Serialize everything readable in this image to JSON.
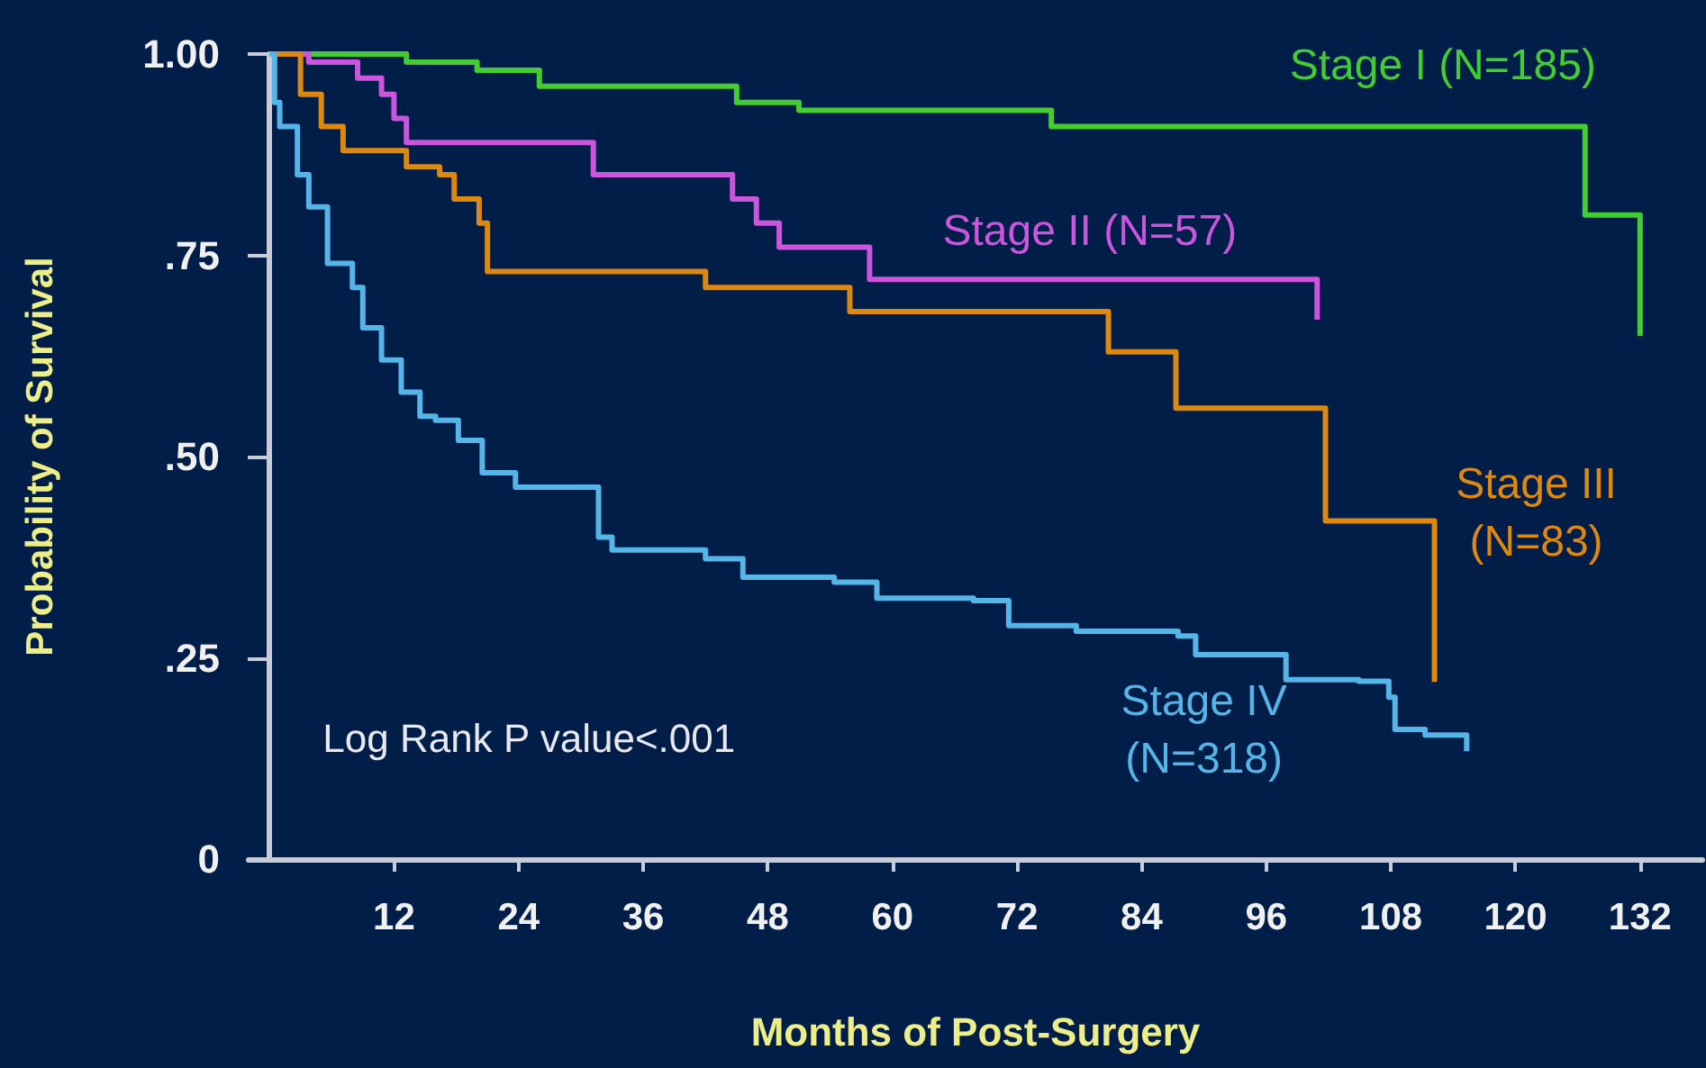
{
  "chart_data": {
    "type": "step",
    "xlabel": "Months of Post-Surgery",
    "ylabel": "Probability of Survival",
    "xlim": [
      -2,
      138
    ],
    "ylim": [
      0,
      1
    ],
    "xticks": [
      12,
      24,
      36,
      48,
      60,
      72,
      84,
      96,
      108,
      120,
      132
    ],
    "yticks": [
      {
        "value": 0,
        "label": "0"
      },
      {
        "value": 0.25,
        "label": ".25"
      },
      {
        "value": 0.5,
        "label": ".50"
      },
      {
        "value": 0.75,
        "label": ".75"
      },
      {
        "value": 1,
        "label": "1.00"
      }
    ],
    "grid": false,
    "legend": false,
    "marker": "none",
    "line_style": "solid",
    "annotations": [
      "Log Rank P value<.001"
    ],
    "series": [
      {
        "name": "Stage I (N=185)",
        "color": "#44cc33",
        "x": [
          0,
          13.2,
          20,
          26,
          45,
          51,
          75.3,
          126.7,
          132
        ],
        "values": [
          1,
          0.99,
          0.98,
          0.96,
          0.94,
          0.93,
          0.91,
          0.8,
          0.65
        ]
      },
      {
        "name": "Stage II (N=57)",
        "color": "#cc55dd",
        "x": [
          0,
          3.8,
          8.5,
          10.8,
          12,
          13.2,
          31.2,
          44.6,
          46.9,
          49.1,
          57.8,
          100.9
        ],
        "values": [
          1,
          0.99,
          0.97,
          0.95,
          0.92,
          0.89,
          0.85,
          0.82,
          0.79,
          0.76,
          0.72,
          0.67
        ]
      },
      {
        "name": "Stage III\n(N=83)",
        "color": "#dd8811",
        "x": [
          0,
          3,
          5,
          7.1,
          13.2,
          16.4,
          17.8,
          20.2,
          21,
          42,
          55.9,
          80.8,
          87.3,
          101.7,
          112.2
        ],
        "values": [
          1,
          0.95,
          0.91,
          0.88,
          0.86,
          0.85,
          0.82,
          0.79,
          0.73,
          0.71,
          0.68,
          0.63,
          0.56,
          0.42,
          0.22
        ]
      },
      {
        "name": "Stage IV\n(N=318)",
        "color": "#55b4e8",
        "x": [
          0,
          0.5,
          1,
          2.7,
          3.8,
          5.6,
          8,
          9,
          10.8,
          12.7,
          14.5,
          16,
          18.2,
          20.5,
          23.7,
          31.7,
          33,
          42,
          45.6,
          54.4,
          58.5,
          67.8,
          71.2,
          77.7,
          87.5,
          89.2,
          97.9,
          104.9,
          107.8,
          108.4,
          111.3,
          115.3,
          115.3
        ],
        "values": [
          1,
          0.94,
          0.91,
          0.85,
          0.81,
          0.74,
          0.71,
          0.66,
          0.62,
          0.58,
          0.55,
          0.545,
          0.52,
          0.48,
          0.462,
          0.4,
          0.384,
          0.373,
          0.35,
          0.344,
          0.324,
          0.321,
          0.29,
          0.283,
          0.277,
          0.254,
          0.223,
          0.221,
          0.201,
          0.161,
          0.154,
          0.143,
          0.134
        ]
      }
    ]
  }
}
